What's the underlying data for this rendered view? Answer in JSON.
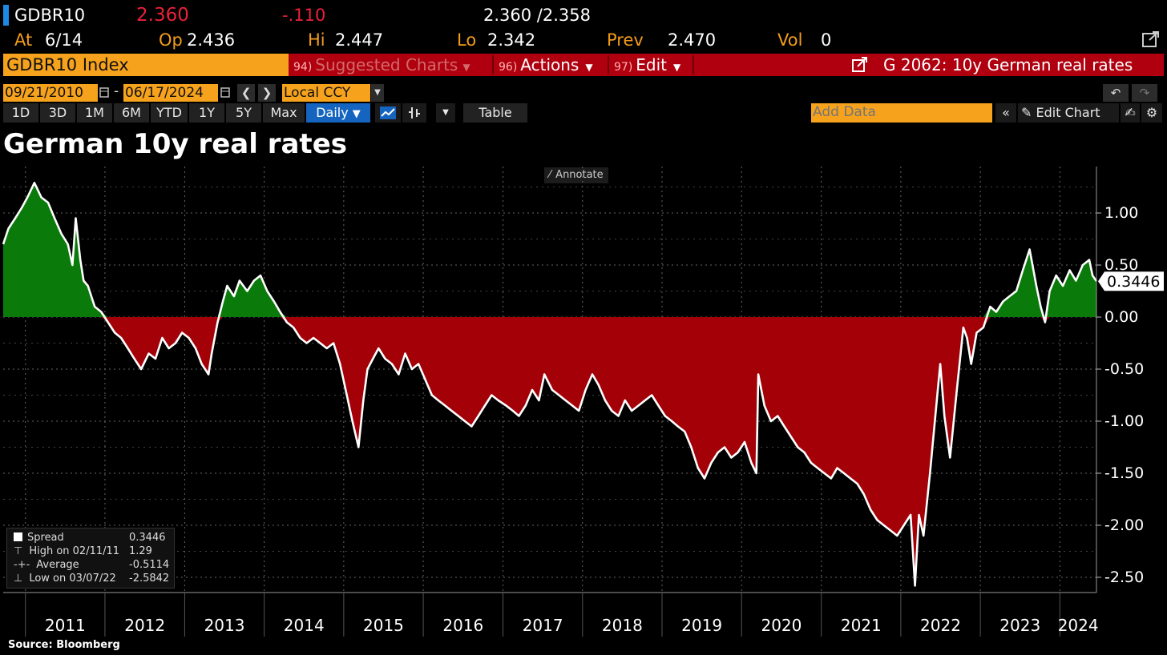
{
  "ticker": {
    "symbol": "GDBR10",
    "last": "2.360",
    "change": "-.110",
    "bid_ask": "2.360 /2.358",
    "at_label": "At",
    "at_value": "6/14",
    "op_label": "Op",
    "op_value": "2.436",
    "hi_label": "Hi",
    "hi_value": "2.447",
    "lo_label": "Lo",
    "lo_value": "2.342",
    "prev_label": "Prev",
    "prev_value": "2.470",
    "vol_label": "Vol",
    "vol_value": "0"
  },
  "command_bar": {
    "security": "GDBR10 Index",
    "suggested": {
      "num": "94)",
      "label": "Suggested Charts"
    },
    "actions": {
      "num": "96)",
      "label": "Actions"
    },
    "edit": {
      "num": "97)",
      "label": "Edit"
    },
    "chart_id": "G 2062: 10y German real rates"
  },
  "controls": {
    "start_date": "09/21/2010",
    "dash": "-",
    "end_date": "06/17/2024",
    "currency": "Local CCY",
    "periods": [
      "1D",
      "3D",
      "1M",
      "6M",
      "YTD",
      "1Y",
      "5Y",
      "Max"
    ],
    "frequency": "Daily",
    "table_label": "Table",
    "add_data_placeholder": "Add Data",
    "edit_chart_label": "Edit Chart",
    "annotate_label": "Annotate"
  },
  "chart_data": {
    "type": "area",
    "title": "German 10y real rates",
    "source": "Source: Bloomberg",
    "xlabel": "",
    "ylabel": "",
    "x_range": [
      "2010-09-21",
      "2024-06-17"
    ],
    "ylim": [
      -2.6,
      1.45
    ],
    "x_ticks": [
      "2011",
      "2012",
      "2013",
      "2014",
      "2015",
      "2016",
      "2017",
      "2018",
      "2019",
      "2020",
      "2021",
      "2022",
      "2023",
      "2024"
    ],
    "y_ticks": [
      "1.00",
      "0.50",
      "0.00",
      "-0.50",
      "-1.00",
      "-1.50",
      "-2.00",
      "-2.50"
    ],
    "y_tick_values": [
      1.0,
      0.5,
      0.0,
      -0.5,
      -1.0,
      -1.5,
      -2.0,
      -2.5
    ],
    "grid": true,
    "fill_positive_color": "#0a7a0a",
    "fill_negative_color": "#a30008",
    "line_color": "#ffffff",
    "last_value_label": "0.3446",
    "series": [
      {
        "name": "Spread",
        "x": [
          "2010-09-21",
          "2010-10-15",
          "2010-11-15",
          "2010-12-15",
          "2011-01-10",
          "2011-02-11",
          "2011-03-15",
          "2011-04-15",
          "2011-05-15",
          "2011-06-15",
          "2011-07-15",
          "2011-08-05",
          "2011-08-20",
          "2011-09-10",
          "2011-09-25",
          "2011-10-15",
          "2011-11-15",
          "2011-12-15",
          "2012-01-15",
          "2012-02-15",
          "2012-03-15",
          "2012-04-15",
          "2012-05-15",
          "2012-06-15",
          "2012-07-20",
          "2012-08-20",
          "2012-09-20",
          "2012-10-20",
          "2012-11-20",
          "2012-12-20",
          "2013-01-20",
          "2013-02-20",
          "2013-03-20",
          "2013-04-20",
          "2013-05-05",
          "2013-06-01",
          "2013-06-25",
          "2013-07-15",
          "2013-08-15",
          "2013-09-10",
          "2013-10-15",
          "2013-11-15",
          "2013-12-15",
          "2014-01-15",
          "2014-02-15",
          "2014-03-15",
          "2014-04-15",
          "2014-05-15",
          "2014-06-15",
          "2014-07-15",
          "2014-08-15",
          "2014-09-15",
          "2014-10-15",
          "2014-11-15",
          "2014-12-15",
          "2015-01-15",
          "2015-02-10",
          "2015-03-10",
          "2015-04-01",
          "2015-04-20",
          "2015-05-15",
          "2015-06-10",
          "2015-07-10",
          "2015-08-10",
          "2015-09-10",
          "2015-10-10",
          "2015-11-10",
          "2015-12-10",
          "2016-01-10",
          "2016-02-10",
          "2016-03-10",
          "2016-04-10",
          "2016-05-10",
          "2016-06-10",
          "2016-07-10",
          "2016-08-10",
          "2016-09-10",
          "2016-10-10",
          "2016-11-10",
          "2016-12-10",
          "2017-01-15",
          "2017-02-15",
          "2017-03-15",
          "2017-04-15",
          "2017-05-15",
          "2017-06-15",
          "2017-07-10",
          "2017-08-15",
          "2017-09-15",
          "2017-10-15",
          "2017-11-15",
          "2017-12-15",
          "2018-01-15",
          "2018-02-15",
          "2018-03-15",
          "2018-04-15",
          "2018-05-15",
          "2018-06-15",
          "2018-07-15",
          "2018-08-15",
          "2018-09-15",
          "2018-10-15",
          "2018-11-15",
          "2018-12-15",
          "2019-01-15",
          "2019-02-15",
          "2019-03-15",
          "2019-04-15",
          "2019-05-15",
          "2019-06-15",
          "2019-07-15",
          "2019-08-15",
          "2019-09-15",
          "2019-10-15",
          "2019-11-15",
          "2019-12-15",
          "2020-01-15",
          "2020-02-15",
          "2020-03-09",
          "2020-03-18",
          "2020-04-15",
          "2020-05-15",
          "2020-06-15",
          "2020-07-15",
          "2020-08-15",
          "2020-09-15",
          "2020-10-15",
          "2020-11-15",
          "2020-12-15",
          "2021-01-15",
          "2021-02-15",
          "2021-03-15",
          "2021-04-15",
          "2021-05-15",
          "2021-06-15",
          "2021-07-15",
          "2021-08-15",
          "2021-09-15",
          "2021-10-15",
          "2021-11-15",
          "2021-12-15",
          "2022-01-15",
          "2022-02-15",
          "2022-03-07",
          "2022-03-25",
          "2022-04-15",
          "2022-05-15",
          "2022-06-15",
          "2022-07-01",
          "2022-07-20",
          "2022-08-15",
          "2022-09-15",
          "2022-10-15",
          "2022-11-01",
          "2022-11-20",
          "2022-12-15",
          "2023-01-15",
          "2023-02-15",
          "2023-03-15",
          "2023-04-15",
          "2023-05-15",
          "2023-06-15",
          "2023-07-15",
          "2023-08-15",
          "2023-09-15",
          "2023-10-05",
          "2023-10-25",
          "2023-11-15",
          "2023-12-15",
          "2024-01-15",
          "2024-02-15",
          "2024-03-15",
          "2024-04-15",
          "2024-05-15",
          "2024-05-30",
          "2024-06-17"
        ],
        "values": [
          0.7,
          0.85,
          0.95,
          1.05,
          1.15,
          1.29,
          1.15,
          1.1,
          0.95,
          0.8,
          0.7,
          0.5,
          0.95,
          0.55,
          0.35,
          0.3,
          0.1,
          0.05,
          -0.05,
          -0.15,
          -0.2,
          -0.3,
          -0.4,
          -0.5,
          -0.35,
          -0.4,
          -0.2,
          -0.3,
          -0.25,
          -0.15,
          -0.2,
          -0.3,
          -0.45,
          -0.55,
          -0.35,
          -0.05,
          0.15,
          0.3,
          0.2,
          0.35,
          0.25,
          0.35,
          0.4,
          0.25,
          0.15,
          0.05,
          -0.05,
          -0.1,
          -0.2,
          -0.25,
          -0.2,
          -0.25,
          -0.3,
          -0.25,
          -0.45,
          -0.75,
          -1.0,
          -1.25,
          -0.8,
          -0.5,
          -0.4,
          -0.3,
          -0.4,
          -0.45,
          -0.55,
          -0.35,
          -0.5,
          -0.45,
          -0.6,
          -0.75,
          -0.8,
          -0.85,
          -0.9,
          -0.95,
          -1.0,
          -1.05,
          -0.95,
          -0.85,
          -0.75,
          -0.8,
          -0.85,
          -0.9,
          -0.95,
          -0.85,
          -0.7,
          -0.8,
          -0.55,
          -0.7,
          -0.75,
          -0.8,
          -0.85,
          -0.9,
          -0.7,
          -0.55,
          -0.65,
          -0.8,
          -0.9,
          -0.95,
          -0.8,
          -0.9,
          -0.85,
          -0.8,
          -0.75,
          -0.85,
          -0.95,
          -1.0,
          -1.05,
          -1.1,
          -1.25,
          -1.45,
          -1.55,
          -1.4,
          -1.3,
          -1.25,
          -1.35,
          -1.3,
          -1.2,
          -1.4,
          -1.5,
          -0.55,
          -0.85,
          -1.0,
          -0.95,
          -1.05,
          -1.15,
          -1.25,
          -1.3,
          -1.4,
          -1.45,
          -1.5,
          -1.55,
          -1.45,
          -1.5,
          -1.55,
          -1.6,
          -1.7,
          -1.85,
          -1.95,
          -2.0,
          -2.05,
          -2.1,
          -2.0,
          -1.9,
          -2.58,
          -1.9,
          -2.1,
          -1.5,
          -0.8,
          -0.45,
          -0.95,
          -1.35,
          -0.7,
          -0.1,
          -0.2,
          -0.45,
          -0.15,
          -0.1,
          0.1,
          0.05,
          0.15,
          0.2,
          0.25,
          0.45,
          0.65,
          0.3,
          0.1,
          -0.05,
          0.25,
          0.4,
          0.3,
          0.45,
          0.35,
          0.5,
          0.55,
          0.4,
          0.3446
        ]
      }
    ],
    "legend": {
      "rows": [
        {
          "label": "Spread",
          "value": "0.3446"
        },
        {
          "label": "High on 02/11/11",
          "value": "1.29"
        },
        {
          "label": "Average",
          "value": "-0.5114"
        },
        {
          "label": "Low on 03/07/22",
          "value": "-2.5842"
        }
      ]
    }
  }
}
